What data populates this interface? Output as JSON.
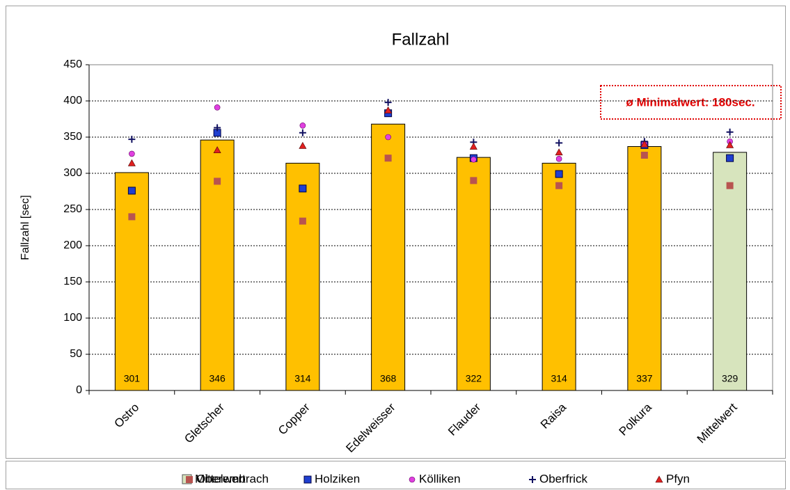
{
  "chart_data": {
    "type": "bar",
    "title": "Fallzahl",
    "y_label": "Fallzahl [sec]",
    "annotation": "ø Minimalwert: 180sec.",
    "categories": [
      "Ostro",
      "Gletscher",
      "Copper",
      "Edelweisser",
      "Flauder",
      "Raisa",
      "Polkura",
      "Mittelwert"
    ],
    "ylim": [
      0,
      450
    ],
    "yticks": [
      0,
      50,
      100,
      150,
      200,
      250,
      300,
      350,
      400,
      450
    ],
    "grid": true,
    "legend": "bottom",
    "series": [
      {
        "name": "Mittelwert",
        "type": "bar",
        "color": "#D7E4BD",
        "colors": [
          "#FFC000",
          "#FFC000",
          "#FFC000",
          "#FFC000",
          "#FFC000",
          "#FFC000",
          "#FFC000",
          "#D7E4BD"
        ],
        "values": [
          301,
          346,
          314,
          368,
          322,
          314,
          337,
          329
        ]
      },
      {
        "name": "Oberembrach",
        "type": "scatter",
        "marker": "square",
        "color": "#B85450",
        "values": [
          240,
          289,
          234,
          321,
          290,
          283,
          325,
          283
        ]
      },
      {
        "name": "Holziken",
        "type": "scatter",
        "marker": "square",
        "color": "#1F3FD0",
        "values": [
          276,
          356,
          279,
          383,
          321,
          299,
          339,
          321
        ]
      },
      {
        "name": "Kölliken",
        "type": "scatter",
        "marker": "circle",
        "color": "#E040E0",
        "values": [
          327,
          391,
          366,
          350,
          319,
          320,
          341,
          344
        ]
      },
      {
        "name": "Oberfrick",
        "type": "scatter",
        "marker": "plus",
        "color": "#C8D0F0",
        "values": [
          347,
          363,
          356,
          398,
          343,
          342,
          344,
          357
        ]
      },
      {
        "name": "Pfyn",
        "type": "scatter",
        "marker": "triangle",
        "color": "#E02020",
        "values": [
          314,
          332,
          338,
          387,
          337,
          329,
          340,
          339
        ]
      }
    ]
  }
}
